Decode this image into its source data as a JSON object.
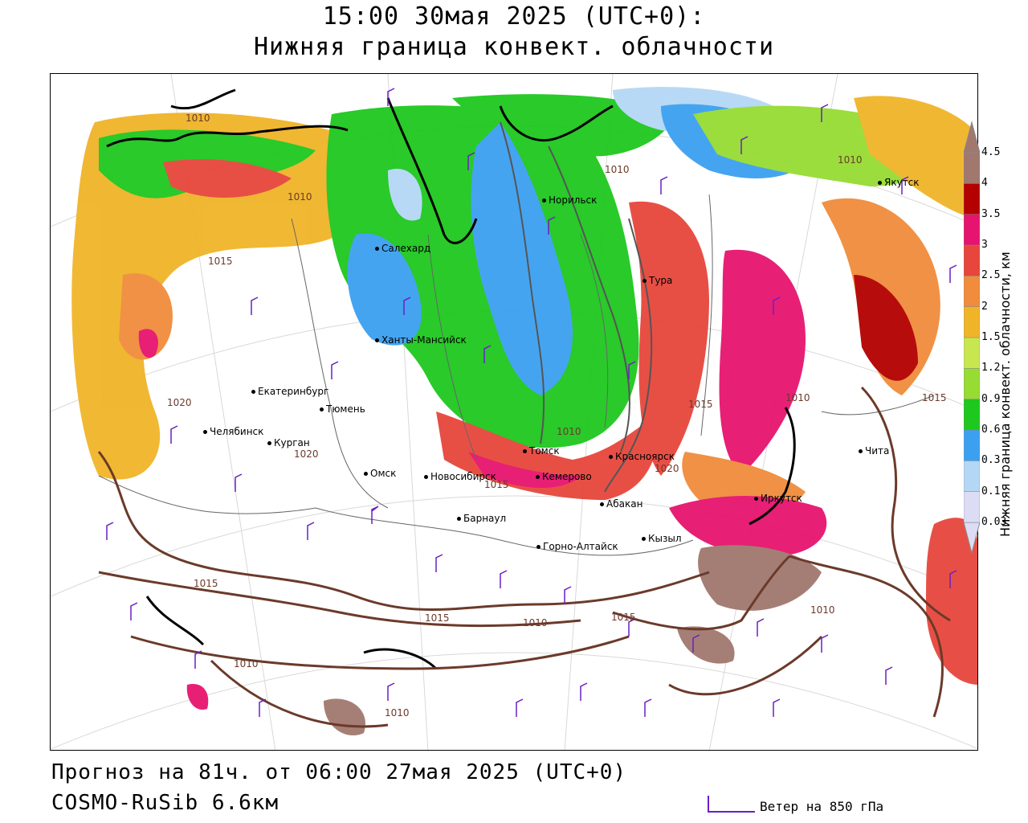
{
  "title_line1": "15:00 30мая 2025 (UTC+0):",
  "title_line2": "Нижняя граница конвект. облачности",
  "footer_line1": "Прогноз на 81ч. от 06:00 27мая 2025 (UTC+0)",
  "footer_line2": "COSMO-RuSib 6.6км",
  "wind_legend_label": "Ветер на 850 гПа",
  "colorbar": {
    "title": "Нижняя граница конвект. облачности, км",
    "ticks": [
      "0.03",
      "0.1",
      "0.3",
      "0.6",
      "0.9",
      "1.2",
      "1.5",
      "2",
      "2.5",
      "3",
      "3.5",
      "4",
      "4.5"
    ],
    "colors": [
      "#dcdcf5",
      "#b4d7f5",
      "#3ca0f0",
      "#1ec81e",
      "#96dc32",
      "#c8e650",
      "#f0b428",
      "#f08c3c",
      "#e6463c",
      "#e6146e",
      "#b40000",
      "#a0786e"
    ]
  },
  "cities": [
    {
      "name": "Норильск"
    },
    {
      "name": "Якутск"
    },
    {
      "name": "Салехард"
    },
    {
      "name": "Тура"
    },
    {
      "name": "Ханты-Мансийск"
    },
    {
      "name": "Екатеринбург"
    },
    {
      "name": "Тюмень"
    },
    {
      "name": "Челябинск"
    },
    {
      "name": "Курган"
    },
    {
      "name": "Омск"
    },
    {
      "name": "Новосибирск"
    },
    {
      "name": "Томск"
    },
    {
      "name": "Кемерово"
    },
    {
      "name": "Красноярск"
    },
    {
      "name": "Абакан"
    },
    {
      "name": "Барнаул"
    },
    {
      "name": "Горно-Алтайск"
    },
    {
      "name": "Кызыл"
    },
    {
      "name": "Иркутск"
    },
    {
      "name": "Чита"
    }
  ],
  "isobars": [
    "1010",
    "1010",
    "1015",
    "1020",
    "1015",
    "1010",
    "1015",
    "1020",
    "1015",
    "1015",
    "1015",
    "1010",
    "1015",
    "1010",
    "1010",
    "1010",
    "1010"
  ]
}
